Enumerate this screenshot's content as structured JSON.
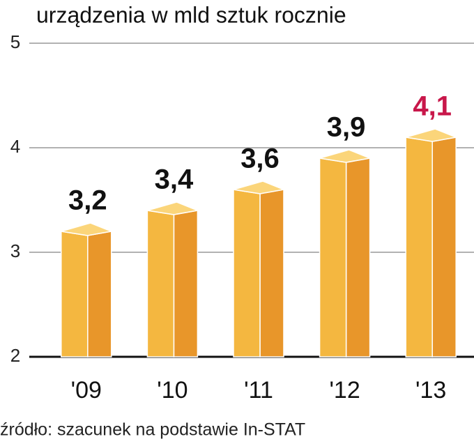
{
  "chart_data": {
    "type": "bar3d",
    "title": "urządzenia w mld sztuk rocznie",
    "source": "źródło: szacunek na podstawie In-STAT",
    "categories": [
      "'09",
      "'10",
      "'11",
      "'12",
      "'13"
    ],
    "values": [
      3.2,
      3.4,
      3.6,
      3.9,
      4.1
    ],
    "value_labels": [
      "3,2",
      "3,4",
      "3,6",
      "3,9",
      "4,1"
    ],
    "value_label_colors": [
      "#111111",
      "#111111",
      "#111111",
      "#111111",
      "#c8174a"
    ],
    "colors": {
      "front": "#f4b740",
      "side": "#e8962a",
      "top": "#fbd57a"
    },
    "ylim": [
      2,
      5
    ],
    "yticks": [
      2,
      3,
      4,
      5
    ],
    "grid": true
  }
}
